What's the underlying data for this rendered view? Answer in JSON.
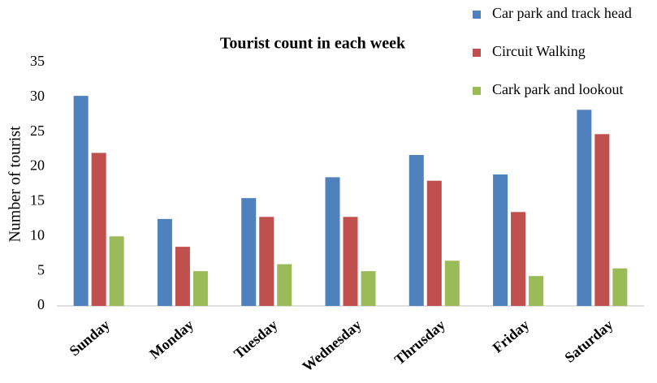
{
  "chart_data": {
    "type": "bar",
    "title": "Tourist count in each week",
    "y_label": "Number of tourist",
    "categories": [
      "Sunday",
      "Monday",
      "Tuesday",
      "Wednesday",
      "Thrusday",
      "Friday",
      "Saturday"
    ],
    "series": [
      {
        "name": "Car park and track head",
        "color": "#4f81bd",
        "values": [
          30.2,
          12.5,
          15.5,
          18.5,
          21.7,
          18.9,
          28.2
        ]
      },
      {
        "name": "Circuit Walking",
        "color": "#c0504d",
        "values": [
          22,
          8.5,
          12.8,
          12.8,
          18,
          13.5,
          24.7
        ]
      },
      {
        "name": "Cark park and lookout",
        "color": "#9bbb59",
        "values": [
          10,
          5,
          6,
          5,
          6.5,
          4.3,
          5.4
        ]
      }
    ],
    "ylim": [
      0,
      35
    ],
    "yticks": [
      0,
      5,
      10,
      15,
      20,
      25,
      30,
      35
    ],
    "grid": false,
    "legend": "top-right"
  }
}
